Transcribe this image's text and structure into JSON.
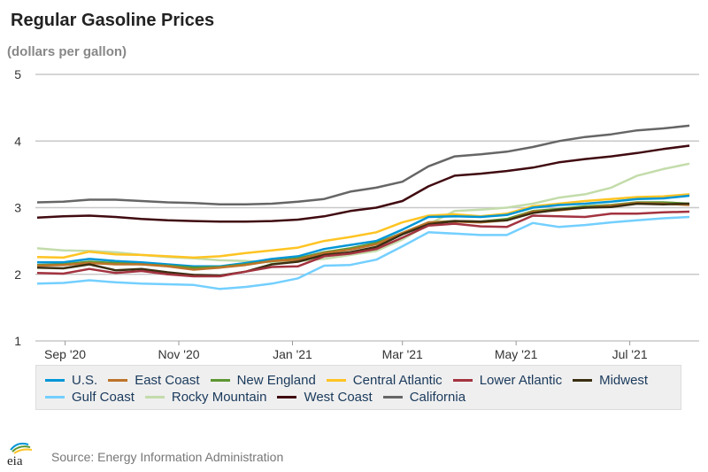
{
  "chart_data": {
    "type": "line",
    "title": "Regular Gasoline Prices",
    "ylabel": "(dollars per gallon)",
    "ylim": [
      1,
      5
    ],
    "yticks": [
      "1",
      "2",
      "3",
      "4",
      "5"
    ],
    "grid": true,
    "legend_position": "bottom",
    "x": [
      "2020-08-17",
      "2020-08-31",
      "2020-09-14",
      "2020-09-28",
      "2020-10-12",
      "2020-10-26",
      "2020-11-09",
      "2020-11-23",
      "2020-12-07",
      "2020-12-21",
      "2021-01-04",
      "2021-01-18",
      "2021-02-01",
      "2021-02-15",
      "2021-03-01",
      "2021-03-15",
      "2021-03-29",
      "2021-04-12",
      "2021-04-26",
      "2021-05-10",
      "2021-05-24",
      "2021-06-07",
      "2021-06-21",
      "2021-07-05",
      "2021-07-19",
      "2021-08-02"
    ],
    "xticks": [
      {
        "label": "Sep '20",
        "date": "2020-09-01"
      },
      {
        "label": "Nov '20",
        "date": "2020-11-01"
      },
      {
        "label": "Jan '21",
        "date": "2021-01-01"
      },
      {
        "label": "Mar '21",
        "date": "2021-03-01"
      },
      {
        "label": "May '21",
        "date": "2021-05-01"
      },
      {
        "label": "Jul '21",
        "date": "2021-07-01"
      }
    ],
    "series": [
      {
        "name": "U.S.",
        "color": "#0096d7",
        "values": [
          2.18,
          2.18,
          2.23,
          2.2,
          2.18,
          2.15,
          2.12,
          2.12,
          2.17,
          2.23,
          2.27,
          2.38,
          2.44,
          2.5,
          2.67,
          2.86,
          2.87,
          2.86,
          2.89,
          3.0,
          3.04,
          3.06,
          3.09,
          3.13,
          3.14,
          3.18
        ]
      },
      {
        "name": "East Coast",
        "color": "#bd732a",
        "values": [
          2.13,
          2.14,
          2.17,
          2.15,
          2.15,
          2.12,
          2.07,
          2.1,
          2.14,
          2.2,
          2.22,
          2.32,
          2.37,
          2.45,
          2.62,
          2.78,
          2.79,
          2.78,
          2.81,
          2.94,
          2.96,
          3.0,
          3.03,
          3.07,
          3.06,
          3.04
        ]
      },
      {
        "name": "New England",
        "color": "#5d9732",
        "values": [
          2.14,
          2.15,
          2.19,
          2.17,
          2.15,
          2.13,
          2.1,
          2.11,
          2.15,
          2.2,
          2.24,
          2.33,
          2.39,
          2.47,
          2.62,
          2.78,
          2.8,
          2.79,
          2.83,
          2.95,
          2.98,
          3.02,
          3.04,
          3.08,
          3.08,
          3.06
        ]
      },
      {
        "name": "Central Atlantic",
        "color": "#ffc423",
        "values": [
          2.26,
          2.25,
          2.34,
          2.3,
          2.29,
          2.27,
          2.25,
          2.27,
          2.32,
          2.36,
          2.4,
          2.5,
          2.56,
          2.63,
          2.78,
          2.88,
          2.9,
          2.87,
          2.91,
          3.02,
          3.06,
          3.1,
          3.13,
          3.16,
          3.17,
          3.2
        ]
      },
      {
        "name": "Lower Atlantic",
        "color": "#a33340",
        "values": [
          2.02,
          2.01,
          2.08,
          2.02,
          2.05,
          2.0,
          1.97,
          1.97,
          2.04,
          2.11,
          2.12,
          2.27,
          2.31,
          2.38,
          2.55,
          2.73,
          2.76,
          2.72,
          2.71,
          2.88,
          2.87,
          2.86,
          2.91,
          2.91,
          2.93,
          2.94
        ]
      },
      {
        "name": "Midwest",
        "color": "#3b2e11",
        "values": [
          2.1,
          2.09,
          2.15,
          2.06,
          2.08,
          2.03,
          1.99,
          1.98,
          2.04,
          2.15,
          2.19,
          2.29,
          2.33,
          2.41,
          2.6,
          2.75,
          2.8,
          2.79,
          2.81,
          2.92,
          2.97,
          3.0,
          3.01,
          3.06,
          3.05,
          3.06
        ]
      },
      {
        "name": "Gulf Coast",
        "color": "#73cfff",
        "values": [
          1.86,
          1.87,
          1.91,
          1.88,
          1.86,
          1.85,
          1.84,
          1.78,
          1.81,
          1.86,
          1.94,
          2.13,
          2.14,
          2.22,
          2.42,
          2.63,
          2.61,
          2.59,
          2.59,
          2.77,
          2.71,
          2.74,
          2.78,
          2.81,
          2.84,
          2.86
        ]
      },
      {
        "name": "Rocky Mountain",
        "color": "#c3dcaa",
        "values": [
          2.39,
          2.36,
          2.35,
          2.33,
          2.29,
          2.26,
          2.24,
          2.21,
          2.2,
          2.18,
          2.2,
          2.23,
          2.29,
          2.35,
          2.52,
          2.75,
          2.95,
          2.97,
          3.0,
          3.06,
          3.15,
          3.2,
          3.3,
          3.48,
          3.58,
          3.66
        ]
      },
      {
        "name": "West Coast",
        "color": "#400a10",
        "values": [
          2.85,
          2.87,
          2.88,
          2.86,
          2.83,
          2.81,
          2.8,
          2.79,
          2.79,
          2.8,
          2.82,
          2.87,
          2.95,
          3.0,
          3.1,
          3.32,
          3.48,
          3.51,
          3.55,
          3.6,
          3.68,
          3.73,
          3.77,
          3.82,
          3.88,
          3.93
        ]
      },
      {
        "name": "California",
        "color": "#666666",
        "values": [
          3.08,
          3.09,
          3.12,
          3.12,
          3.1,
          3.08,
          3.07,
          3.05,
          3.05,
          3.06,
          3.09,
          3.13,
          3.24,
          3.3,
          3.39,
          3.62,
          3.77,
          3.8,
          3.84,
          3.91,
          4.0,
          4.06,
          4.1,
          4.16,
          4.19,
          4.23
        ]
      }
    ]
  },
  "source": "Source: Energy Information Administration",
  "logo_text": "eia"
}
